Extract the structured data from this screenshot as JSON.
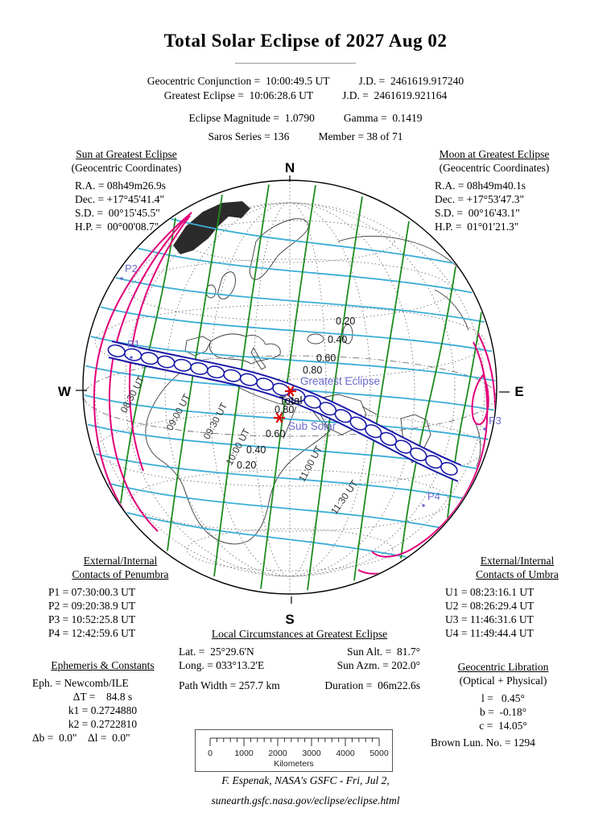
{
  "title": "Total Solar Eclipse of  2027 Aug 02",
  "header": {
    "row1_left": "Geocentric Conjunction =  10:00:49.5 UT",
    "row1_right": "J.D. =  2461619.917240",
    "row2_left": "Greatest Eclipse =  10:06:28.6 UT",
    "row2_right": "J.D. =  2461619.921164",
    "row3_left": "Eclipse Magnitude =  1.0790",
    "row3_right": "Gamma =  0.1419",
    "row4_left": "Saros Series = 136",
    "row4_right": "Member = 38 of 71"
  },
  "sun": {
    "title": "Sun at Greatest Eclipse",
    "subtitle": "(Geocentric Coordinates)",
    "lines": [
      "R.A. = 08h49m26.9s",
      "Dec. = +17°45'41.4\"",
      "S.D. =  00°15'45.5\"",
      "H.P. =  00°00'08.7\""
    ]
  },
  "moon": {
    "title": "Moon at Greatest Eclipse",
    "subtitle": "(Geocentric Coordinates)",
    "lines": [
      "R.A. = 08h49m40.1s",
      "Dec. = +17°53'47.3\"",
      "S.D. =  00°16'43.1\"",
      "H.P. =  01°01'21.3\""
    ]
  },
  "penumbra": {
    "title1": "External/Internal",
    "title2": "Contacts of Penumbra",
    "lines": [
      "P1 = 07:30:00.3 UT",
      "P2 = 09:20:38.9 UT",
      "P3 = 10:52:25.8 UT",
      "P4 = 12:42:59.6 UT"
    ]
  },
  "umbra": {
    "title1": "External/Internal",
    "title2": "Contacts of Umbra",
    "lines": [
      "U1 = 08:23:16.1 UT",
      "U2 = 08:26:29.4 UT",
      "U3 = 11:46:31.6 UT",
      "U4 = 11:49:44.4 UT"
    ]
  },
  "local": {
    "title": "Local Circumstances at Greatest Eclipse",
    "lat": "Lat. =  25°29.6'N",
    "sun_alt": "Sun Alt. =  81.7°",
    "long": "Long. = 033°13.2'E",
    "sun_azm": "Sun Azm. = 202.0°",
    "path_width": "Path Width = 257.7 km",
    "duration": "Duration =  06m22.6s"
  },
  "ephemeris": {
    "title": "Ephemeris & Constants",
    "lines": [
      "Eph. = Newcomb/ILE",
      "ΔT =    84.8 s",
      "k1 = 0.2724880",
      "k2 = 0.2722810",
      "Δb =  0.0\"    Δl =  0.0\""
    ]
  },
  "libration": {
    "title": "Geocentric Libration",
    "subtitle": "(Optical + Physical)",
    "lines": [
      "l =   0.45°",
      "b =  -0.18°",
      "c =  14.05°"
    ],
    "brown": "Brown Lun. No. = 1294"
  },
  "scalebar": {
    "ticks": [
      "0",
      "1000",
      "2000",
      "3000",
      "4000",
      "5000"
    ],
    "unit": "Kilometers"
  },
  "footer": {
    "line1": "F. Espenak, NASA's GSFC - Fri, Jul 2,",
    "line2": "sunearth.gsfc.nasa.gov/eclipse/eclipse.html"
  },
  "map": {
    "labels": {
      "n": "N",
      "s": "S",
      "w": "W",
      "e": "E",
      "p1": "P1",
      "p2": "P2",
      "p3": "P3",
      "p4": "P4",
      "greatest": "Greatest Eclipse",
      "total": "Total",
      "sub_solar": "Sub Solar",
      "mag_n": [
        "0.20",
        "0.40",
        "0.60",
        "0.80"
      ],
      "mag_s": [
        "0.80",
        "0.60",
        "0.40",
        "0.20"
      ],
      "times": [
        "08:30 UT",
        "09:00 UT",
        "09:30 UT",
        "10:00 UT",
        "11:00 UT",
        "11:30 UT"
      ]
    },
    "colors": {
      "penumbra_limit": "#E2007A",
      "umbra_path": "#1A1AA8",
      "magnitude_curves": "#3BAED6",
      "time_curves": "#1E8B1E",
      "blue_labels": "#6A6ACD",
      "marker_red": "#E00000"
    }
  },
  "chart_data": {
    "type": "table",
    "title": "Total Solar Eclipse of 2027 Aug 02",
    "columns": [
      "parameter",
      "value"
    ],
    "rows": [
      [
        "Geocentric Conjunction",
        "10:00:49.5 UT"
      ],
      [
        "Geocentric Conjunction J.D.",
        "2461619.917240"
      ],
      [
        "Greatest Eclipse",
        "10:06:28.6 UT"
      ],
      [
        "Greatest Eclipse J.D.",
        "2461619.921164"
      ],
      [
        "Eclipse Magnitude",
        "1.0790"
      ],
      [
        "Gamma",
        "0.1419"
      ],
      [
        "Saros Series",
        "136"
      ],
      [
        "Member",
        "38 of 71"
      ],
      [
        "Sun R.A.",
        "08h49m26.9s"
      ],
      [
        "Sun Dec.",
        "+17°45'41.4\""
      ],
      [
        "Sun S.D.",
        "00°15'45.5\""
      ],
      [
        "Sun H.P.",
        "00°00'08.7\""
      ],
      [
        "Moon R.A.",
        "08h49m40.1s"
      ],
      [
        "Moon Dec.",
        "+17°53'47.3\""
      ],
      [
        "Moon S.D.",
        "00°16'43.1\""
      ],
      [
        "Moon H.P.",
        "01°01'21.3\""
      ],
      [
        "P1",
        "07:30:00.3 UT"
      ],
      [
        "P2",
        "09:20:38.9 UT"
      ],
      [
        "P3",
        "10:52:25.8 UT"
      ],
      [
        "P4",
        "12:42:59.6 UT"
      ],
      [
        "U1",
        "08:23:16.1 UT"
      ],
      [
        "U2",
        "08:26:29.4 UT"
      ],
      [
        "U3",
        "11:46:31.6 UT"
      ],
      [
        "U4",
        "11:49:44.4 UT"
      ],
      [
        "Lat.",
        "25°29.6'N"
      ],
      [
        "Long.",
        "033°13.2'E"
      ],
      [
        "Sun Alt.",
        "81.7°"
      ],
      [
        "Sun Azm.",
        "202.0°"
      ],
      [
        "Path Width",
        "257.7 km"
      ],
      [
        "Duration",
        "06m22.6s"
      ],
      [
        "Eph.",
        "Newcomb/ILE"
      ],
      [
        "ΔT",
        "84.8 s"
      ],
      [
        "k1",
        "0.2724880"
      ],
      [
        "k2",
        "0.2722810"
      ],
      [
        "Δb",
        "0.0\""
      ],
      [
        "Δl",
        "0.0\""
      ],
      [
        "Libration l",
        "0.45°"
      ],
      [
        "Libration b",
        "-0.18°"
      ],
      [
        "Libration c",
        "14.05°"
      ],
      [
        "Brown Lun. No.",
        "1294"
      ],
      [
        "Scale bar range",
        "0–5000 Kilometers"
      ]
    ]
  }
}
